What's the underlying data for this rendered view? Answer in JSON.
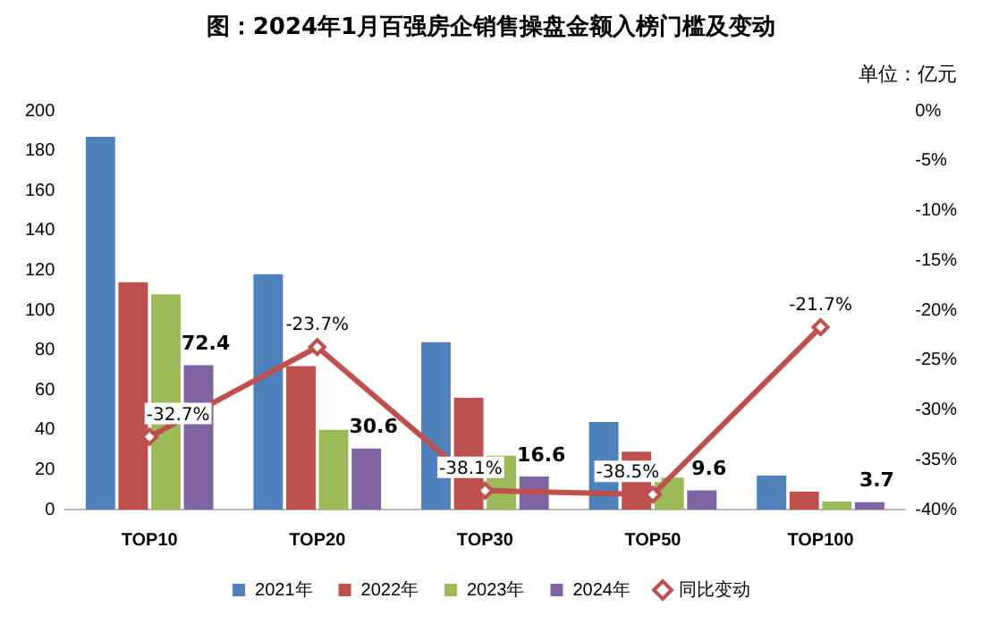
{
  "chart_data": {
    "type": "bar",
    "title": "图：2024年1月百强房企销售操盘金额入榜门槛及变动",
    "annotations": [
      "单位：亿元"
    ],
    "categories": [
      "TOP10",
      "TOP20",
      "TOP30",
      "TOP50",
      "TOP100"
    ],
    "series": [
      {
        "name": "2021年",
        "color": "#4f81bd",
        "values": [
          187,
          118,
          84,
          44,
          17
        ]
      },
      {
        "name": "2022年",
        "color": "#c0504d",
        "values": [
          114,
          72,
          56,
          29,
          9
        ]
      },
      {
        "name": "2023年",
        "color": "#9bbb59",
        "values": [
          108,
          40,
          27,
          16,
          4
        ]
      },
      {
        "name": "2024年",
        "color": "#8064a2",
        "values": [
          72.4,
          30.6,
          16.6,
          9.6,
          3.7
        ],
        "value_labels": [
          "72.4",
          "30.6",
          "16.6",
          "9.6",
          "3.7"
        ]
      },
      {
        "name": "同比变动",
        "type": "line",
        "axis": "y2",
        "color": "#c0504d",
        "marker": "diamond",
        "values": [
          -32.7,
          -23.7,
          -38.1,
          -38.5,
          -21.7
        ],
        "value_labels": [
          "-32.7%",
          "-23.7%",
          "-38.1%",
          "-38.5%",
          "-21.7%"
        ]
      }
    ],
    "ylim": [
      0,
      200
    ],
    "yticks": [
      0,
      20,
      40,
      60,
      80,
      100,
      120,
      140,
      160,
      180,
      200
    ],
    "y2lim": [
      -40,
      0
    ],
    "y2ticks": [
      {
        "value": 0,
        "label": "0%"
      },
      {
        "value": -5,
        "label": "-5%"
      },
      {
        "value": -10,
        "label": "-10%"
      },
      {
        "value": -15,
        "label": "-15%"
      },
      {
        "value": -20,
        "label": "-20%"
      },
      {
        "value": -25,
        "label": "-25%"
      },
      {
        "value": -30,
        "label": "-30%"
      },
      {
        "value": -35,
        "label": "-35%"
      },
      {
        "value": -40,
        "label": "-40%"
      }
    ],
    "grid": false,
    "legend": "bottom"
  }
}
